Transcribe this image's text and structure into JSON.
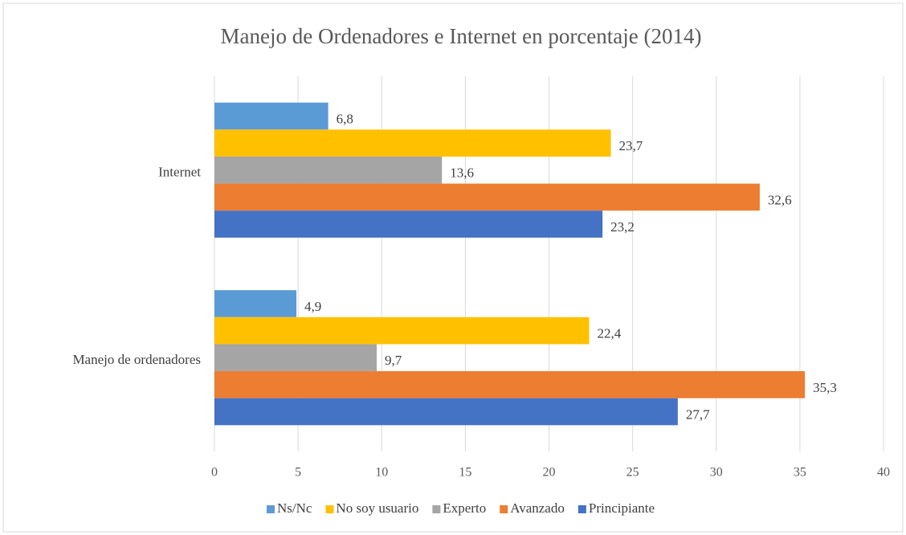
{
  "chart_data": {
    "type": "bar",
    "orientation": "horizontal",
    "title": "Manejo de Ordenadores e Internet en porcentaje (2014)",
    "categories": [
      "Internet",
      "Manejo de ordenadores"
    ],
    "series": [
      {
        "name": "Ns/Nc",
        "color": "#5b9bd5",
        "values": [
          6.8,
          4.9
        ],
        "value_labels": [
          "6,8",
          "4,9"
        ]
      },
      {
        "name": "No soy usuario",
        "color": "#ffc000",
        "values": [
          23.7,
          22.4
        ],
        "value_labels": [
          "23,7",
          "22,4"
        ]
      },
      {
        "name": "Experto",
        "color": "#a5a5a5",
        "values": [
          13.6,
          9.7
        ],
        "value_labels": [
          "13,6",
          "9,7"
        ]
      },
      {
        "name": "Avanzado",
        "color": "#ed7d31",
        "values": [
          32.6,
          35.3
        ],
        "value_labels": [
          "32,6",
          "35,3"
        ]
      },
      {
        "name": "Principiante",
        "color": "#4472c4",
        "values": [
          23.2,
          27.7
        ],
        "value_labels": [
          "23,2",
          "27,7"
        ]
      }
    ],
    "xlim": [
      0,
      40
    ],
    "xticks": [
      0,
      5,
      10,
      15,
      20,
      25,
      30,
      35,
      40
    ],
    "grid": true,
    "legend": "bottom"
  }
}
